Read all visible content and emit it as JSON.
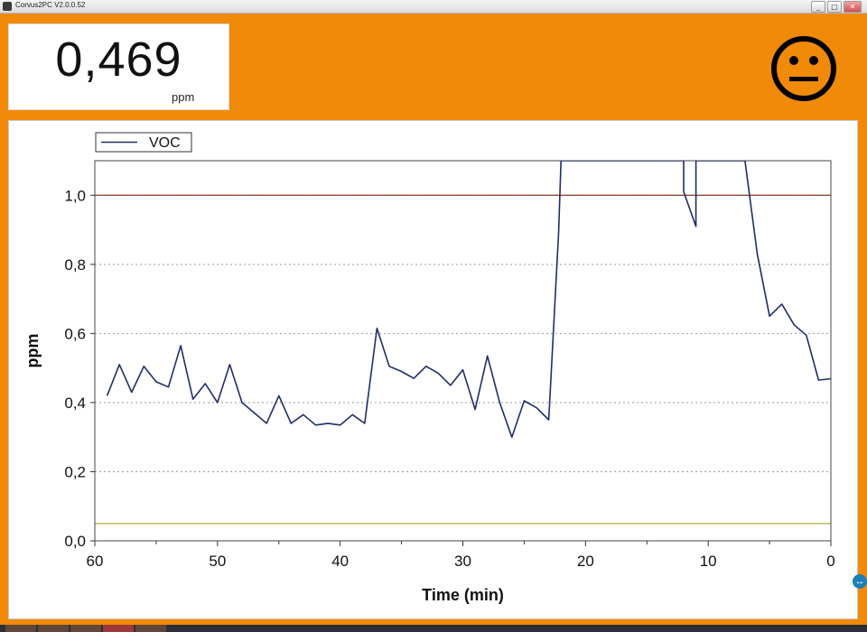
{
  "window": {
    "title": "Corvus2PC V2.0.0.52",
    "buttons": [
      "_",
      "□",
      "✕"
    ]
  },
  "reading": {
    "value": "0,469",
    "unit": "ppm",
    "status_icon": "neutral-face-icon"
  },
  "colors": {
    "background": "#f08a08",
    "series": "#1f2d6b",
    "upper_limit": "#8b3a2a",
    "lower_limit": "#b3a53a",
    "grid": "#9a9a9a"
  },
  "chart_data": {
    "type": "line",
    "title": "",
    "xlabel": "Time (min)",
    "ylabel": "ppm",
    "x_ticks": [
      "60",
      "50",
      "40",
      "30",
      "20",
      "10",
      "0"
    ],
    "y_ticks": [
      "0,0",
      "0,2",
      "0,4",
      "0,6",
      "0,8",
      "1,0"
    ],
    "xlim": [
      60,
      0
    ],
    "ylim": [
      0,
      1.1
    ],
    "grid": "horizontal-dotted",
    "legend": {
      "position": "top-left",
      "entries": [
        "VOC"
      ]
    },
    "reference_lines": [
      {
        "y": 1.0,
        "color": "#8b3a2a"
      },
      {
        "y": 0.05,
        "color": "#b3a53a"
      }
    ],
    "series": [
      {
        "name": "VOC",
        "x": [
          59,
          58,
          57,
          56,
          55,
          54,
          53,
          52,
          51,
          50,
          49,
          48,
          47,
          46,
          45,
          44,
          43,
          42,
          41,
          40,
          39,
          38,
          37,
          36,
          35,
          34,
          33,
          32,
          31,
          30,
          29,
          28,
          27,
          26,
          25,
          24,
          23,
          22.2,
          22,
          12,
          12,
          11,
          11,
          7,
          6,
          5,
          4,
          3,
          2,
          1,
          0
        ],
        "y": [
          0.42,
          0.51,
          0.43,
          0.505,
          0.46,
          0.445,
          0.565,
          0.41,
          0.455,
          0.4,
          0.51,
          0.4,
          0.37,
          0.34,
          0.42,
          0.34,
          0.365,
          0.335,
          0.34,
          0.335,
          0.365,
          0.34,
          0.615,
          0.505,
          0.49,
          0.47,
          0.505,
          0.485,
          0.45,
          0.495,
          0.38,
          0.535,
          0.4,
          0.3,
          0.405,
          0.385,
          0.35,
          0.89,
          1.1,
          1.1,
          1.01,
          0.91,
          1.1,
          1.1,
          0.83,
          0.65,
          0.685,
          0.625,
          0.595,
          0.465,
          0.469
        ]
      }
    ]
  }
}
